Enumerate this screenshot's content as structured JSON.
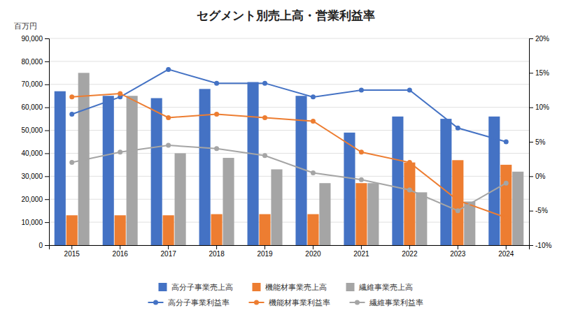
{
  "chart_data": {
    "type": "bar",
    "title": "セグメント別売上高・営業利益率",
    "ylabel": "百万円",
    "categories": [
      "2015",
      "2016",
      "2017",
      "2018",
      "2019",
      "2020",
      "2021",
      "2022",
      "2023",
      "2024"
    ],
    "series": [
      {
        "name": "高分子事業売上高",
        "type": "bar",
        "color": "#4472C4",
        "values": [
          67000,
          65000,
          64000,
          68000,
          71000,
          65000,
          49000,
          56000,
          55000,
          56000
        ]
      },
      {
        "name": "機能材事業売上高",
        "type": "bar",
        "color": "#ED7D31",
        "values": [
          13000,
          13000,
          13000,
          13500,
          13500,
          13500,
          27000,
          36000,
          37000,
          35000
        ]
      },
      {
        "name": "繊維事業売上高",
        "type": "bar",
        "color": "#A5A5A5",
        "values": [
          75000,
          65000,
          40000,
          38000,
          33000,
          27000,
          27000,
          23000,
          19000,
          32000
        ]
      },
      {
        "name": "高分子事業利益率",
        "type": "line",
        "axis": "y2",
        "marker": "circle",
        "color": "#4472C4",
        "values": [
          9.0,
          11.5,
          15.5,
          13.5,
          13.5,
          11.5,
          12.5,
          12.5,
          7.0,
          5.0
        ]
      },
      {
        "name": "機能材事業利益率",
        "type": "line",
        "axis": "y2",
        "marker": "circle",
        "color": "#ED7D31",
        "values": [
          11.5,
          12.0,
          8.5,
          9.0,
          8.5,
          8.0,
          3.5,
          2.0,
          -3.5,
          -6.0
        ]
      },
      {
        "name": "繊維事業利益率",
        "type": "line",
        "axis": "y2",
        "marker": "circle",
        "color": "#A5A5A5",
        "values": [
          2.0,
          3.5,
          4.5,
          4.0,
          3.0,
          0.5,
          -0.5,
          -2.0,
          -5.0,
          -1.0
        ]
      }
    ],
    "ylim": [
      0,
      90000
    ],
    "yticks": [
      0,
      {
        "value": 10000,
        "label": "10,000"
      },
      {
        "value": 20000,
        "label": "20,000"
      },
      {
        "value": 30000,
        "label": "30,000"
      },
      {
        "value": 40000,
        "label": "40,000"
      },
      {
        "value": 50000,
        "label": "50,000"
      },
      {
        "value": 60000,
        "label": "60,000"
      },
      {
        "value": 70000,
        "label": "70,000"
      },
      {
        "value": 80000,
        "label": "80,000"
      },
      {
        "value": 90000,
        "label": "90,000"
      }
    ],
    "y2lim": [
      -10,
      20
    ],
    "y2ticks": [
      {
        "value": -10,
        "label": "-10%"
      },
      {
        "value": -5,
        "label": "-5%"
      },
      {
        "value": 0,
        "label": "0%"
      },
      {
        "value": 5,
        "label": "5%"
      },
      {
        "value": 10,
        "label": "10%"
      },
      {
        "value": 15,
        "label": "15%"
      },
      {
        "value": 20,
        "label": "20%"
      }
    ],
    "grid": true,
    "legend": "bottom"
  }
}
